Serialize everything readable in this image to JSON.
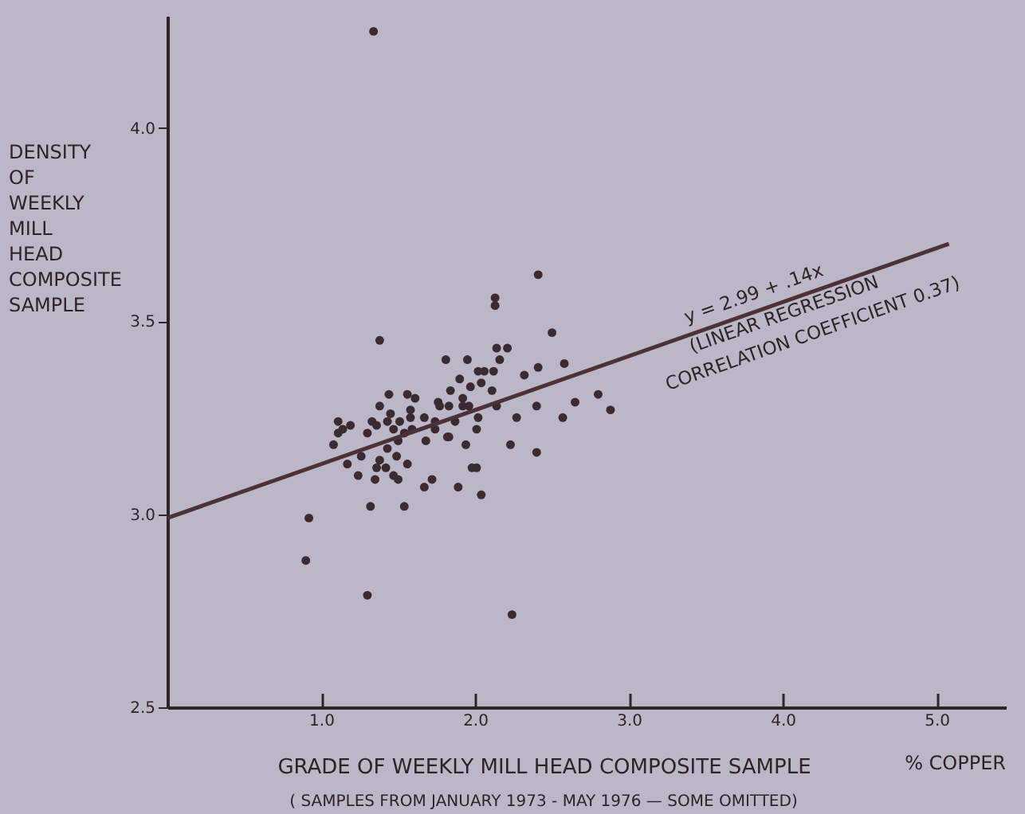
{
  "chart_data": {
    "type": "scatter",
    "xlabel": "GRADE OF WEEKLY MILL HEAD COMPOSITE SAMPLE",
    "ylabel": "DENSITY OF WEEKLY MILL HEAD COMPOSITE SAMPLE",
    "xlim": [
      0,
      5.45
    ],
    "ylim": [
      2.5,
      4.29
    ],
    "xticks": [
      {
        "value": 1,
        "label": "1.0"
      },
      {
        "value": 2,
        "label": "2.0"
      },
      {
        "value": 3,
        "label": "3.0"
      },
      {
        "value": 4,
        "label": "4.0"
      },
      {
        "value": 5,
        "label": "5.0"
      }
    ],
    "yticks": [
      2.5,
      {
        "value": 3,
        "label": "3.0"
      },
      3.5,
      {
        "value": 4,
        "label": "4.0"
      }
    ],
    "series": [
      {
        "color": "#3a2a32",
        "marker": "circle",
        "x": [
          1.34,
          2.41,
          2.13,
          2.13,
          1.38,
          2.5,
          1.81,
          1.95,
          2.14,
          2.21,
          2.16,
          2.58,
          2.41,
          2.32,
          1.9,
          2.02,
          2.06,
          2.12,
          2.04,
          1.97,
          2.11,
          1.84,
          1.44,
          1.56,
          1.61,
          1.92,
          1.76,
          1.38,
          1.92,
          2.14,
          2.4,
          2.65,
          2.8,
          2.88,
          2.57,
          2.27,
          1.45,
          1.58,
          1.77,
          1.83,
          1.96,
          1.11,
          1.19,
          1.33,
          1.43,
          1.51,
          1.58,
          1.67,
          1.74,
          1.87,
          2.02,
          1.11,
          1.3,
          1.59,
          1.83,
          2.01,
          1.47,
          1.36,
          1.54,
          1.14,
          1.08,
          1.5,
          1.68,
          1.82,
          1.74,
          1.94,
          2.23,
          2.4,
          1.17,
          1.26,
          1.38,
          1.36,
          1.42,
          1.43,
          1.49,
          1.56,
          1.24,
          1.35,
          1.47,
          1.5,
          1.72,
          1.67,
          1.89,
          1.98,
          2.01,
          2.04,
          1.32,
          1.54,
          0.92,
          0.9,
          1.3,
          2.24
        ],
        "values": [
          4.25,
          3.62,
          3.56,
          3.54,
          3.45,
          3.47,
          3.4,
          3.4,
          3.43,
          3.43,
          3.4,
          3.39,
          3.38,
          3.36,
          3.35,
          3.37,
          3.37,
          3.37,
          3.34,
          3.33,
          3.32,
          3.32,
          3.31,
          3.31,
          3.3,
          3.3,
          3.29,
          3.28,
          3.28,
          3.28,
          3.28,
          3.29,
          3.31,
          3.27,
          3.25,
          3.25,
          3.26,
          3.27,
          3.28,
          3.28,
          3.28,
          3.24,
          3.23,
          3.24,
          3.24,
          3.24,
          3.25,
          3.25,
          3.24,
          3.24,
          3.25,
          3.21,
          3.21,
          3.22,
          3.2,
          3.22,
          3.22,
          3.23,
          3.21,
          3.22,
          3.18,
          3.19,
          3.19,
          3.2,
          3.22,
          3.18,
          3.18,
          3.16,
          3.13,
          3.15,
          3.14,
          3.12,
          3.12,
          3.17,
          3.15,
          3.13,
          3.1,
          3.09,
          3.1,
          3.09,
          3.09,
          3.07,
          3.07,
          3.12,
          3.12,
          3.05,
          3.02,
          3.02,
          2.99,
          2.88,
          2.79,
          2.74
        ]
      },
      {
        "type": "line",
        "color": "#4a3238",
        "x": [
          0,
          5.08
        ],
        "values": [
          2.99,
          3.7
        ]
      }
    ],
    "annotations": [
      "y = 2.99 + .14x",
      "(LINEAR REGRESSION",
      "CORRELATION COEFFICIENT 0.37)",
      "% COPPER",
      "( SAMPLES FROM JANUARY 1973 - MAY 1976 — SOME OMITTED)"
    ]
  }
}
